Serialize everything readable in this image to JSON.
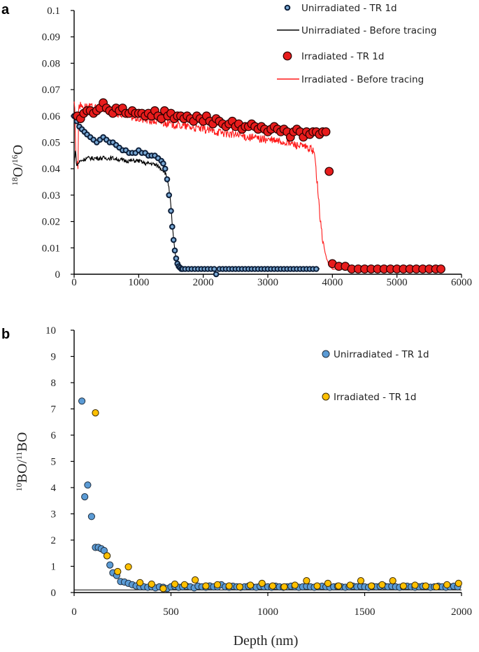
{
  "chart_data": [
    {
      "panel": "a",
      "type": "scatter",
      "title": "",
      "xlabel": "",
      "ylabel": "18O/16O",
      "ylabel_parts": {
        "sup1": "18",
        "base1": "O/",
        "sup2": "16",
        "base2": "O"
      },
      "xlim": [
        0,
        6000
      ],
      "ylim": [
        0,
        0.1
      ],
      "x_ticks": [
        0,
        1000,
        2000,
        3000,
        4000,
        5000,
        6000
      ],
      "x_tick_labels": [
        "0",
        "1000",
        "2000",
        "3000",
        "4000",
        "5000",
        "6000"
      ],
      "y_ticks": [
        0,
        0.01,
        0.02,
        0.03,
        0.04,
        0.05,
        0.06,
        0.07,
        0.08,
        0.09,
        0.1
      ],
      "y_tick_labels": [
        "0",
        "0.01",
        "0.02",
        "0.03",
        "0.04",
        "0.05",
        "0.06",
        "0.07",
        "0.08",
        "0.09",
        "0.1"
      ],
      "series": [
        {
          "name": "Unirradiated - TR 1d",
          "kind": "markers",
          "color": "#7aaad6",
          "edge": "#0d1f3a",
          "x": [
            0,
            40,
            80,
            120,
            160,
            200,
            250,
            300,
            350,
            400,
            450,
            500,
            550,
            600,
            650,
            700,
            750,
            800,
            850,
            900,
            950,
            1000,
            1050,
            1100,
            1150,
            1200,
            1250,
            1300,
            1350,
            1380,
            1410,
            1440,
            1470,
            1500,
            1520,
            1540,
            1560,
            1580,
            1600,
            1620,
            1640,
            1660,
            1680,
            1720,
            1770,
            1820,
            1870,
            1920,
            1970,
            2020,
            2070,
            2120,
            2170,
            2200,
            2250,
            2300,
            2350,
            2400,
            2450,
            2500,
            2550,
            2600,
            2650,
            2700,
            2750,
            2800,
            2850,
            2900,
            2950,
            3000,
            3050,
            3100,
            3150,
            3200,
            3250,
            3300,
            3350,
            3400,
            3450,
            3500,
            3550,
            3600,
            3650,
            3700,
            3750
          ],
          "y": [
            0.06,
            0.058,
            0.056,
            0.055,
            0.054,
            0.053,
            0.052,
            0.051,
            0.05,
            0.051,
            0.052,
            0.051,
            0.05,
            0.05,
            0.049,
            0.048,
            0.047,
            0.047,
            0.046,
            0.046,
            0.046,
            0.047,
            0.046,
            0.046,
            0.045,
            0.045,
            0.045,
            0.044,
            0.043,
            0.042,
            0.04,
            0.036,
            0.03,
            0.024,
            0.018,
            0.013,
            0.009,
            0.006,
            0.004,
            0.003,
            0.0025,
            0.002,
            0.002,
            0.002,
            0.002,
            0.002,
            0.002,
            0.002,
            0.002,
            0.002,
            0.002,
            0.002,
            0.002,
            0.0,
            0.002,
            0.002,
            0.002,
            0.002,
            0.002,
            0.002,
            0.002,
            0.002,
            0.002,
            0.002,
            0.002,
            0.002,
            0.002,
            0.002,
            0.002,
            0.002,
            0.002,
            0.002,
            0.002,
            0.002,
            0.002,
            0.002,
            0.002,
            0.002,
            0.002,
            0.002,
            0.002,
            0.002,
            0.002,
            0.002,
            0.002
          ]
        },
        {
          "name": "Unirradiated - Before tracing",
          "kind": "line",
          "color": "#000000",
          "x": [
            0,
            20,
            40,
            60,
            100,
            200,
            400,
            600,
            800,
            1000,
            1100,
            1200,
            1300,
            1350,
            1400,
            1430,
            1460,
            1490,
            1510,
            1530,
            1550,
            1570,
            1590,
            1610,
            1630,
            1650,
            1700,
            2000,
            3000,
            3800
          ],
          "y": [
            0.042,
            0.047,
            0.041,
            0.042,
            0.043,
            0.044,
            0.044,
            0.044,
            0.043,
            0.043,
            0.042,
            0.042,
            0.041,
            0.04,
            0.039,
            0.037,
            0.034,
            0.028,
            0.022,
            0.016,
            0.011,
            0.007,
            0.004,
            0.003,
            0.002,
            0.002,
            0.002,
            0.002,
            0.002,
            0.002
          ]
        },
        {
          "name": "Irradiated - TR 1d",
          "kind": "markers",
          "color": "#e81c1c",
          "edge": "#2a0000",
          "x": [
            50,
            100,
            150,
            200,
            250,
            300,
            350,
            400,
            450,
            500,
            550,
            600,
            650,
            700,
            750,
            800,
            850,
            900,
            950,
            1000,
            1050,
            1100,
            1150,
            1200,
            1250,
            1300,
            1350,
            1400,
            1450,
            1500,
            1550,
            1600,
            1650,
            1700,
            1750,
            1800,
            1850,
            1900,
            1950,
            2000,
            2050,
            2100,
            2150,
            2200,
            2250,
            2300,
            2350,
            2400,
            2450,
            2500,
            2550,
            2600,
            2650,
            2700,
            2750,
            2800,
            2850,
            2900,
            2950,
            3000,
            3050,
            3100,
            3150,
            3200,
            3250,
            3300,
            3350,
            3400,
            3450,
            3500,
            3550,
            3600,
            3650,
            3700,
            3750,
            3800,
            3850,
            3900,
            3950,
            4000,
            4100,
            4200,
            4300,
            4400,
            4500,
            4600,
            4700,
            4800,
            4900,
            5000,
            5100,
            5200,
            5300,
            5400,
            5500,
            5600,
            5680
          ],
          "y": [
            0.06,
            0.059,
            0.061,
            0.062,
            0.062,
            0.061,
            0.062,
            0.063,
            0.065,
            0.063,
            0.062,
            0.061,
            0.063,
            0.062,
            0.063,
            0.061,
            0.061,
            0.062,
            0.061,
            0.061,
            0.061,
            0.06,
            0.061,
            0.06,
            0.062,
            0.06,
            0.059,
            0.062,
            0.06,
            0.061,
            0.059,
            0.06,
            0.06,
            0.059,
            0.06,
            0.059,
            0.058,
            0.06,
            0.059,
            0.058,
            0.06,
            0.058,
            0.057,
            0.059,
            0.058,
            0.057,
            0.056,
            0.057,
            0.058,
            0.056,
            0.057,
            0.055,
            0.056,
            0.056,
            0.057,
            0.056,
            0.055,
            0.056,
            0.055,
            0.054,
            0.055,
            0.056,
            0.055,
            0.054,
            0.055,
            0.054,
            0.052,
            0.054,
            0.055,
            0.054,
            0.052,
            0.054,
            0.053,
            0.054,
            0.054,
            0.053,
            0.054,
            0.054,
            0.039,
            0.004,
            0.003,
            0.003,
            0.002,
            0.002,
            0.002,
            0.002,
            0.002,
            0.002,
            0.002,
            0.002,
            0.002,
            0.002,
            0.002,
            0.002,
            0.002,
            0.002,
            0.002
          ]
        },
        {
          "name": "Irradiated - Before tracing",
          "kind": "line",
          "color": "#ff1a1a",
          "x": [
            0,
            10,
            30,
            60,
            70,
            90,
            300,
            1000,
            2000,
            2700,
            3300,
            3600,
            3700,
            3730,
            3760,
            3790,
            3820,
            3850,
            3880,
            3910,
            3940,
            3970,
            4000,
            4100,
            4500
          ],
          "y": [
            0.066,
            0.062,
            0.043,
            0.041,
            0.064,
            0.064,
            0.063,
            0.059,
            0.055,
            0.052,
            0.05,
            0.048,
            0.047,
            0.044,
            0.036,
            0.027,
            0.019,
            0.013,
            0.009,
            0.006,
            0.004,
            0.003,
            0.002,
            0.002,
            0.002
          ]
        }
      ]
    },
    {
      "panel": "b",
      "type": "scatter",
      "title": "",
      "xlabel": "Depth (nm)",
      "ylabel": "10BO/11BO",
      "ylabel_parts": {
        "sup1": "10",
        "base1": "BO/",
        "sup2": "11",
        "base2": "BO"
      },
      "xlim": [
        0,
        2000
      ],
      "ylim": [
        0,
        10
      ],
      "x_ticks": [
        0,
        500,
        1000,
        1500,
        2000
      ],
      "x_tick_labels": [
        "0",
        "500",
        "1000",
        "1500",
        "2000"
      ],
      "y_ticks": [
        0,
        1,
        2,
        3,
        4,
        5,
        6,
        7,
        8,
        9,
        10
      ],
      "y_tick_labels": [
        "0",
        "1",
        "2",
        "3",
        "4",
        "5",
        "6",
        "7",
        "8",
        "9",
        "10"
      ],
      "baseline": 0.1,
      "series": [
        {
          "name": "Unirradiated - TR 1d",
          "color": "#5b9bd5",
          "edge": "#1f2d3d",
          "x": [
            40,
            55,
            70,
            90,
            110,
            125,
            140,
            155,
            170,
            185,
            200,
            220,
            240,
            260,
            280,
            300,
            320,
            340,
            360,
            380,
            400,
            420,
            440,
            460,
            480,
            500,
            520,
            540,
            560,
            580,
            600,
            620,
            640,
            660,
            680,
            700,
            720,
            740,
            760,
            780,
            800,
            820,
            840,
            860,
            880,
            900,
            920,
            940,
            960,
            980,
            1000,
            1020,
            1040,
            1060,
            1080,
            1100,
            1120,
            1140,
            1160,
            1180,
            1200,
            1220,
            1240,
            1260,
            1280,
            1300,
            1320,
            1340,
            1360,
            1380,
            1400,
            1420,
            1440,
            1460,
            1480,
            1500,
            1520,
            1540,
            1560,
            1580,
            1600,
            1620,
            1640,
            1660,
            1680,
            1700,
            1720,
            1740,
            1760,
            1780,
            1800,
            1820,
            1840,
            1860,
            1880,
            1900,
            1920,
            1940,
            1960,
            1980
          ],
          "y": [
            7.3,
            3.65,
            4.1,
            2.9,
            1.72,
            1.72,
            1.67,
            1.6,
            1.4,
            1.05,
            0.75,
            0.65,
            0.42,
            0.4,
            0.35,
            0.3,
            0.25,
            0.22,
            0.22,
            0.2,
            0.22,
            0.18,
            0.22,
            0.2,
            0.15,
            0.22,
            0.24,
            0.2,
            0.22,
            0.24,
            0.22,
            0.18,
            0.24,
            0.22,
            0.2,
            0.25,
            0.22,
            0.22,
            0.3,
            0.22,
            0.2,
            0.24,
            0.22,
            0.2,
            0.22,
            0.24,
            0.22,
            0.2,
            0.24,
            0.22,
            0.22,
            0.2,
            0.24,
            0.22,
            0.2,
            0.22,
            0.24,
            0.22,
            0.2,
            0.22,
            0.24,
            0.22,
            0.2,
            0.22,
            0.24,
            0.22,
            0.2,
            0.22,
            0.24,
            0.22,
            0.2,
            0.22,
            0.24,
            0.22,
            0.24,
            0.22,
            0.2,
            0.24,
            0.22,
            0.24,
            0.25,
            0.22,
            0.24,
            0.22,
            0.2,
            0.22,
            0.24,
            0.22,
            0.2,
            0.22,
            0.24,
            0.22,
            0.2,
            0.22,
            0.24,
            0.22,
            0.2,
            0.22,
            0.24,
            0.22
          ]
        },
        {
          "name": "Irradiated - TR 1d",
          "color": "#ffc000",
          "edge": "#3a2a00",
          "x": [
            110,
            170,
            225,
            280,
            340,
            400,
            460,
            520,
            570,
            625,
            680,
            740,
            800,
            855,
            910,
            970,
            1025,
            1085,
            1140,
            1200,
            1255,
            1310,
            1365,
            1425,
            1480,
            1535,
            1590,
            1645,
            1700,
            1760,
            1815,
            1870,
            1925,
            1985
          ],
          "y": [
            6.85,
            1.4,
            0.8,
            0.98,
            0.38,
            0.32,
            0.15,
            0.32,
            0.3,
            0.48,
            0.25,
            0.3,
            0.25,
            0.22,
            0.28,
            0.35,
            0.25,
            0.22,
            0.28,
            0.45,
            0.25,
            0.35,
            0.25,
            0.28,
            0.45,
            0.25,
            0.3,
            0.45,
            0.25,
            0.28,
            0.25,
            0.22,
            0.3,
            0.35
          ]
        }
      ]
    }
  ]
}
